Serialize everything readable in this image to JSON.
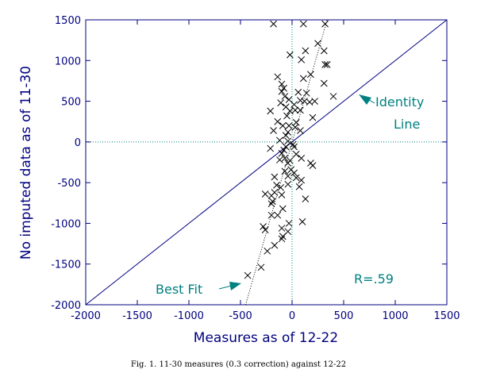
{
  "chart_data": {
    "type": "scatter",
    "xlabel": "Measures as of 12-22",
    "ylabel": "No imputed data as of 11-30",
    "xlim": [
      -2000,
      1500
    ],
    "ylim": [
      -2000,
      1500
    ],
    "x_ticks": [
      "-2000",
      "-1500",
      "-1000",
      "-500",
      "0",
      "500",
      "1000",
      "1500"
    ],
    "y_ticks": [
      "-2000",
      "-1500",
      "-1000",
      "-500",
      "0",
      "500",
      "1000",
      "1500"
    ],
    "grid": false,
    "zero_reference_lines": true,
    "marker": "x",
    "colors": {
      "axis": "#000080",
      "annotation": "#008080",
      "marker": "#000000",
      "reference": "#008080"
    },
    "identity_line": {
      "from": [
        -2000,
        -2000
      ],
      "to": [
        1500,
        1500
      ]
    },
    "best_fit_line": {
      "from": [
        -450,
        -2000
      ],
      "to": [
        340,
        1500
      ]
    },
    "annotations": {
      "identity": [
        "Identity",
        "Line"
      ],
      "best_fit": "Best Fit",
      "r_value": "R=.59"
    },
    "points": [
      [
        -180,
        1450
      ],
      [
        110,
        1450
      ],
      [
        320,
        1450
      ],
      [
        250,
        1210
      ],
      [
        310,
        1120
      ],
      [
        130,
        1120
      ],
      [
        -20,
        1070
      ],
      [
        90,
        1010
      ],
      [
        320,
        950
      ],
      [
        340,
        950
      ],
      [
        180,
        830
      ],
      [
        -140,
        800
      ],
      [
        110,
        780
      ],
      [
        -100,
        710
      ],
      [
        -80,
        660
      ],
      [
        310,
        720
      ],
      [
        -100,
        620
      ],
      [
        60,
        610
      ],
      [
        -70,
        560
      ],
      [
        140,
        600
      ],
      [
        400,
        560
      ],
      [
        -30,
        520
      ],
      [
        80,
        510
      ],
      [
        120,
        500
      ],
      [
        170,
        490
      ],
      [
        220,
        500
      ],
      [
        -110,
        480
      ],
      [
        20,
        460
      ],
      [
        -60,
        430
      ],
      [
        -210,
        380
      ],
      [
        -20,
        380
      ],
      [
        30,
        390
      ],
      [
        80,
        390
      ],
      [
        -50,
        320
      ],
      [
        200,
        300
      ],
      [
        -140,
        250
      ],
      [
        40,
        240
      ],
      [
        -90,
        200
      ],
      [
        -30,
        200
      ],
      [
        30,
        180
      ],
      [
        -180,
        140
      ],
      [
        -40,
        120
      ],
      [
        80,
        140
      ],
      [
        -60,
        80
      ],
      [
        -120,
        20
      ],
      [
        -40,
        10
      ],
      [
        -210,
        -80
      ],
      [
        -60,
        -60
      ],
      [
        10,
        -30
      ],
      [
        20,
        -60
      ],
      [
        -80,
        -100
      ],
      [
        -100,
        -140
      ],
      [
        40,
        -150
      ],
      [
        -70,
        -200
      ],
      [
        -20,
        -230
      ],
      [
        -120,
        -220
      ],
      [
        90,
        -200
      ],
      [
        180,
        -260
      ],
      [
        200,
        -290
      ],
      [
        -40,
        -260
      ],
      [
        -10,
        -340
      ],
      [
        -70,
        -360
      ],
      [
        20,
        -380
      ],
      [
        -40,
        -420
      ],
      [
        40,
        -440
      ],
      [
        -170,
        -430
      ],
      [
        90,
        -470
      ],
      [
        -40,
        -520
      ],
      [
        70,
        -550
      ],
      [
        -150,
        -530
      ],
      [
        -110,
        -560
      ],
      [
        -170,
        -620
      ],
      [
        -200,
        -660
      ],
      [
        -260,
        -640
      ],
      [
        -100,
        -650
      ],
      [
        130,
        -700
      ],
      [
        -190,
        -730
      ],
      [
        -200,
        -760
      ],
      [
        -90,
        -820
      ],
      [
        -200,
        -900
      ],
      [
        -140,
        -900
      ],
      [
        -280,
        -1040
      ],
      [
        -260,
        -1080
      ],
      [
        -30,
        -1000
      ],
      [
        100,
        -980
      ],
      [
        -100,
        -1060
      ],
      [
        -40,
        -1100
      ],
      [
        -90,
        -1160
      ],
      [
        -100,
        -1190
      ],
      [
        -170,
        -1270
      ],
      [
        -240,
        -1340
      ],
      [
        -300,
        -1540
      ],
      [
        -430,
        -1640
      ]
    ]
  },
  "caption": "Fig. 1. 11-30 measures (0.3 correction) against 12-22"
}
